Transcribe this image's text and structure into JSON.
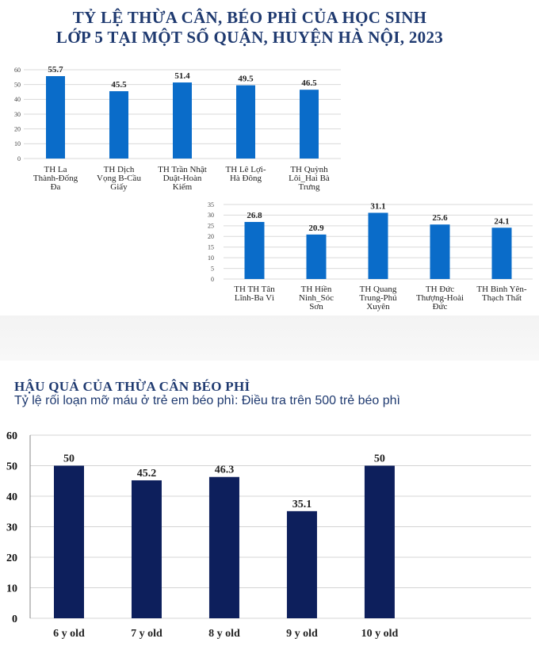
{
  "header": {
    "title_line1": "TỶ LỆ THỪA CÂN, BÉO PHÌ CỦA HỌC SINH",
    "title_line2": "LỚP 5 TẠI MỘT SỐ QUẬN, HUYỆN HÀ NỘI, 2023"
  },
  "section": {
    "title": "HẬU QUẢ CỦA THỪA CÂN BÉO PHÌ",
    "subtitle": "Tỷ lệ rối loạn mỡ máu ở trẻ em béo phì: Điều tra trên 500 trẻ béo phì"
  },
  "colors": {
    "accent": "#1f3a70",
    "bar_blue": "#0a6cc9",
    "bar_navy": "#0d1f5c"
  },
  "chart_data": [
    {
      "type": "bar",
      "title": "",
      "categories": [
        [
          "TH La",
          "Thành-Đống",
          "Đa"
        ],
        [
          "TH Dịch",
          "Vọng B-Cầu",
          "Giấy"
        ],
        [
          "TH Trần Nhật",
          "Duật-Hoàn",
          "Kiếm"
        ],
        [
          "TH Lê Lợi-",
          "Hà Đông"
        ],
        [
          "TH Quỳnh",
          "Lôi_Hai Bà",
          "Trưng"
        ]
      ],
      "values": [
        55.7,
        45.5,
        51.4,
        49.5,
        46.5
      ],
      "ylim": [
        0,
        60
      ],
      "yticks": [
        0,
        10,
        20,
        30,
        40,
        50,
        60
      ],
      "grid": true,
      "legend": "none"
    },
    {
      "type": "bar",
      "title": "",
      "categories": [
        [
          "TH TH Tân",
          "Lĩnh-Ba Vì"
        ],
        [
          "TH Hiền",
          "Ninh_Sóc",
          "Sơn"
        ],
        [
          "TH Quang",
          "Trung-Phú",
          "Xuyên"
        ],
        [
          "TH Đức",
          "Thượng-Hoài",
          "Đức"
        ],
        [
          "TH Bình Yên-",
          "Thạch Thất"
        ]
      ],
      "values": [
        26.8,
        20.9,
        31.1,
        25.6,
        24.1
      ],
      "ylim": [
        0,
        35
      ],
      "yticks": [
        0,
        5,
        10,
        15,
        20,
        25,
        30,
        35
      ],
      "grid": true,
      "legend": "none"
    },
    {
      "type": "bar",
      "title": "",
      "categories": [
        "6 y old",
        "7 y old",
        "8 y old",
        "9 y old",
        "10 y old"
      ],
      "values": [
        50,
        45.2,
        46.3,
        35.1,
        50
      ],
      "ylim": [
        0,
        60
      ],
      "yticks": [
        0,
        10,
        20,
        30,
        40,
        50,
        60
      ],
      "grid": true,
      "legend": "none"
    }
  ]
}
